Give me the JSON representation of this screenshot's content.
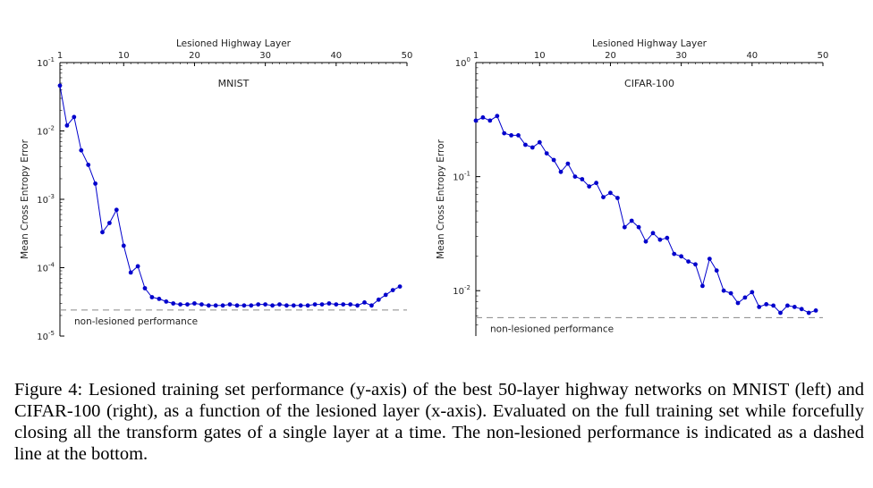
{
  "chart_data": [
    {
      "type": "line",
      "title": "MNIST",
      "xlabel": "Lesioned Highway Layer",
      "ylabel": "Mean Cross Entropy Error",
      "xlim": [
        1,
        50
      ],
      "ylim": [
        1e-05,
        0.1
      ],
      "yscale": "log",
      "x_ticks": [
        1,
        10,
        20,
        30,
        40,
        50
      ],
      "x_axis_position": "top",
      "y_ticks": [
        {
          "value": 0.1,
          "base": "10",
          "exp": "-1"
        },
        {
          "value": 0.01,
          "base": "10",
          "exp": "-2"
        },
        {
          "value": 0.001,
          "base": "10",
          "exp": "-3"
        },
        {
          "value": 0.0001,
          "base": "10",
          "exp": "-4"
        },
        {
          "value": 1e-05,
          "base": "10",
          "exp": "-5"
        }
      ],
      "grid": false,
      "color": "#0000cc",
      "x": [
        1,
        2,
        3,
        4,
        5,
        6,
        7,
        8,
        9,
        10,
        11,
        12,
        13,
        14,
        15,
        16,
        17,
        18,
        19,
        20,
        21,
        22,
        23,
        24,
        25,
        26,
        27,
        28,
        29,
        30,
        31,
        32,
        33,
        34,
        35,
        36,
        37,
        38,
        39,
        40,
        41,
        42,
        43,
        44,
        45,
        46,
        47,
        48,
        49
      ],
      "values": [
        0.046,
        0.012,
        0.016,
        0.0052,
        0.0032,
        0.0017,
        0.00033,
        0.00045,
        0.0007,
        0.00021,
        8.5e-05,
        0.000105,
        5e-05,
        3.7e-05,
        3.5e-05,
        3.2e-05,
        3e-05,
        2.9e-05,
        2.9e-05,
        3e-05,
        2.9e-05,
        2.8e-05,
        2.8e-05,
        2.8e-05,
        2.9e-05,
        2.8e-05,
        2.8e-05,
        2.8e-05,
        2.9e-05,
        2.9e-05,
        2.8e-05,
        2.9e-05,
        2.8e-05,
        2.8e-05,
        2.8e-05,
        2.8e-05,
        2.9e-05,
        2.9e-05,
        3e-05,
        2.9e-05,
        2.9e-05,
        2.9e-05,
        2.8e-05,
        3.1e-05,
        2.8e-05,
        3.4e-05,
        4e-05,
        4.7e-05,
        5.3e-05
      ],
      "reference_line": {
        "label": "non-lesioned performance",
        "value": 2.4e-05,
        "style": "dashed"
      }
    },
    {
      "type": "line",
      "title": "CIFAR-100",
      "xlabel": "Lesioned Highway Layer",
      "ylabel": "Mean Cross Entropy Error",
      "xlim": [
        1,
        50
      ],
      "ylim": [
        0.004,
        1
      ],
      "yscale": "log",
      "x_ticks": [
        1,
        10,
        20,
        30,
        40,
        50
      ],
      "x_axis_position": "top",
      "y_ticks": [
        {
          "value": 1,
          "base": "10",
          "exp": "0"
        },
        {
          "value": 0.1,
          "base": "10",
          "exp": "-1"
        },
        {
          "value": 0.01,
          "base": "10",
          "exp": "-2"
        }
      ],
      "grid": false,
      "color": "#0000cc",
      "x": [
        1,
        2,
        3,
        4,
        5,
        6,
        7,
        8,
        9,
        10,
        11,
        12,
        13,
        14,
        15,
        16,
        17,
        18,
        19,
        20,
        21,
        22,
        23,
        24,
        25,
        26,
        27,
        28,
        29,
        30,
        31,
        32,
        33,
        34,
        35,
        36,
        37,
        38,
        39,
        40,
        41,
        42,
        43,
        44,
        45,
        46,
        47,
        48,
        49
      ],
      "values": [
        0.31,
        0.33,
        0.31,
        0.34,
        0.24,
        0.23,
        0.23,
        0.19,
        0.18,
        0.2,
        0.16,
        0.14,
        0.11,
        0.13,
        0.1,
        0.095,
        0.082,
        0.088,
        0.066,
        0.072,
        0.065,
        0.036,
        0.041,
        0.036,
        0.027,
        0.032,
        0.028,
        0.029,
        0.021,
        0.02,
        0.018,
        0.017,
        0.011,
        0.019,
        0.015,
        0.01,
        0.0095,
        0.0078,
        0.0087,
        0.0097,
        0.0072,
        0.0076,
        0.0074,
        0.0064,
        0.0074,
        0.0072,
        0.0069,
        0.0064,
        0.0067
      ],
      "reference_line": {
        "label": "non-lesioned performance",
        "value": 0.0058,
        "style": "dashed"
      }
    }
  ],
  "caption": "Figure 4: Lesioned training set performance (y-axis) of the best 50-layer highway networks on MNIST (left) and CIFAR-100 (right), as a function of the lesioned layer (x-axis). Evaluated on the full training set while forcefully closing all the transform gates of a single layer at a time. The non-lesioned performance is indicated as a dashed line at the bottom."
}
